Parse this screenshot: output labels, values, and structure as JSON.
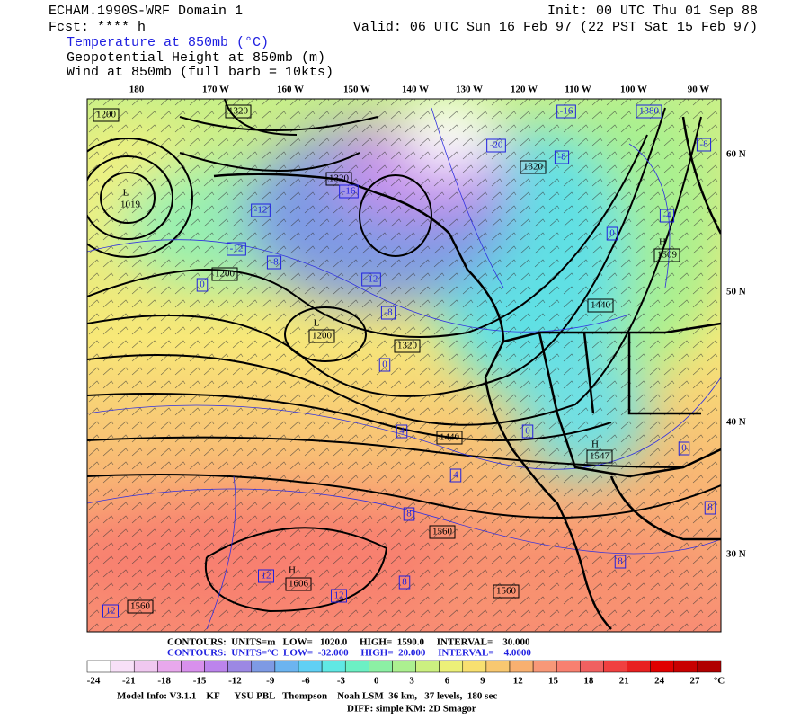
{
  "header": {
    "title": "ECHAM.1990S-WRF Domain 1",
    "forecast": "Fcst: **** h",
    "fields": [
      "Temperature at 850mb (°C)",
      "Geopotential Height at 850mb (m)",
      "Wind at 850mb (full barb = 10kts)"
    ],
    "init": "Init: 00 UTC Thu 01 Sep 88",
    "valid": "Valid: 06 UTC Sun 16 Feb 97 (22 PST Sat 15 Feb 97)"
  },
  "map": {
    "longitudes": [
      "180",
      "170 W",
      "160 W",
      "150 W",
      "140 W",
      "130 W",
      "120 W",
      "110 W",
      "100 W",
      "90 W"
    ],
    "latitudes": [
      "60 N",
      "50 N",
      "40 N",
      "30 N"
    ],
    "labels": [
      "1200",
      "1320",
      "L",
      "1019",
      "1320",
      "-16",
      "-12",
      "-12",
      "-8",
      "1200",
      "0",
      "-12",
      "-8",
      "L",
      "1200",
      "1320",
      "0",
      "-20",
      "-16",
      "1320",
      "-8",
      "1380",
      "-8",
      "-4",
      "0",
      "H",
      "1509",
      "1440",
      "4",
      "1440",
      "0",
      "0",
      "H",
      "1547",
      "4",
      "8",
      "1560",
      "12",
      "H",
      "1606",
      "12",
      "8",
      "1560",
      "12",
      "1560",
      "8",
      "8"
    ]
  },
  "legend": {
    "height": "CONTOURS:  UNITS=m   LOW=   1020.0     HIGH=  1590.0     INTERVAL=    30.000",
    "temperature": "CONTOURS:  UNITS=°C  LOW=  -32.000     HIGH=  20.000     INTERVAL=    4.0000"
  },
  "colorbar": {
    "colors": [
      "#ffffff",
      "#f8e0f8",
      "#f0c8f0",
      "#e8a8ec",
      "#d890ec",
      "#bc84ec",
      "#9c88e4",
      "#7e9ae4",
      "#6cb4f0",
      "#60d0f4",
      "#60e8e4",
      "#6cf0c4",
      "#8cf0a4",
      "#acf090",
      "#ccf080",
      "#ecf078",
      "#f8e070",
      "#f8c870",
      "#f8b070",
      "#f89878",
      "#f88070",
      "#f06060",
      "#f04040",
      "#e82020",
      "#e00000",
      "#c80000",
      "#b00000"
    ],
    "labels": [
      -24,
      -21,
      -18,
      -15,
      -12,
      -9,
      -6,
      -3,
      0,
      3,
      6,
      9,
      12,
      15,
      18,
      21,
      24,
      27
    ],
    "unit": "°C"
  },
  "footer": {
    "model_info": "Model Info: V3.1.1    KF      YSU PBL   Thompson    Noah LSM  36 km,   37 levels,  180 sec",
    "diff": "DIFF: simple KM: 2D Smagor"
  }
}
